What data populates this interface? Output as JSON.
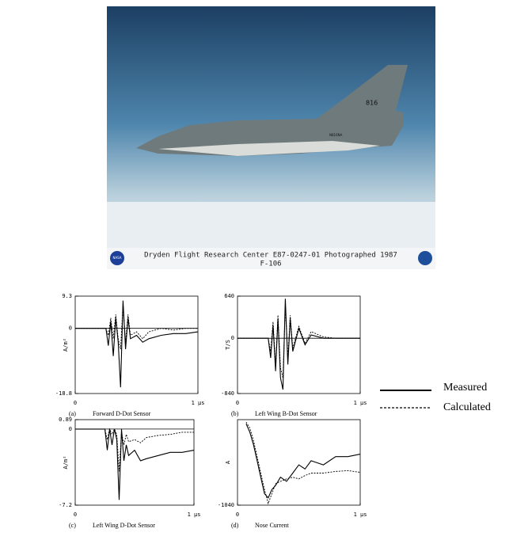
{
  "photo": {
    "caption": "Dryden Flight Research Center  E87-0247-01  Photographed 1987",
    "label": "F-106",
    "tail_number": "816",
    "registration": "N816NA",
    "logo": "NASA"
  },
  "chart_data": [
    {
      "type": "line",
      "label": "(a)",
      "title": "Forward D-Dot Sensor",
      "ylabel": "A/m²",
      "x": [
        0,
        0.2,
        0.25,
        0.27,
        0.29,
        0.31,
        0.33,
        0.35,
        0.37,
        0.39,
        0.41,
        0.43,
        0.45,
        0.5,
        0.55,
        0.6,
        0.7,
        0.8,
        0.9,
        1
      ],
      "series": [
        {
          "name": "Measured",
          "color": "#000000",
          "style": "solid",
          "values": [
            0,
            0,
            0,
            -5,
            2,
            -8,
            3,
            -4,
            -17,
            8,
            -6,
            3,
            -3,
            -2,
            -4,
            -3,
            -2,
            -1.5,
            -1.5,
            -1
          ]
        },
        {
          "name": "Calculated",
          "color": "#000000",
          "style": "dashed",
          "values": [
            0,
            0,
            0,
            -2,
            3,
            -3,
            4,
            -3,
            -6,
            7,
            -4,
            4,
            -2,
            -1,
            -3,
            -1,
            0,
            -0.5,
            0,
            0
          ]
        }
      ],
      "xlim": [
        0,
        1
      ],
      "xticks": [
        0,
        {
          "value": 1,
          "label": "1 μs"
        }
      ],
      "ylim": [
        -18.8,
        9.3
      ],
      "yticks": [
        -18.8,
        0,
        9.3
      ],
      "grid": false
    },
    {
      "type": "line",
      "label": "(b)",
      "title": "Left Wing B-Dot Sensor",
      "ylabel": "T/S",
      "x": [
        0,
        0.2,
        0.25,
        0.27,
        0.29,
        0.31,
        0.33,
        0.35,
        0.37,
        0.39,
        0.41,
        0.43,
        0.45,
        0.5,
        0.55,
        0.6,
        0.7,
        0.8,
        0.9,
        1
      ],
      "series": [
        {
          "name": "Measured",
          "color": "#000000",
          "style": "solid",
          "values": [
            0,
            0,
            0,
            -300,
            200,
            -500,
            300,
            -600,
            -780,
            600,
            -400,
            300,
            -200,
            150,
            -100,
            50,
            0,
            0,
            0,
            0
          ]
        },
        {
          "name": "Calculated",
          "color": "#000000",
          "style": "dashed",
          "values": [
            0,
            0,
            0,
            -200,
            250,
            -400,
            350,
            -450,
            -600,
            500,
            -300,
            350,
            -150,
            180,
            -80,
            100,
            20,
            0,
            0,
            0
          ]
        }
      ],
      "xlim": [
        0,
        1
      ],
      "xticks": [
        0,
        {
          "value": 1,
          "label": "1 μs"
        }
      ],
      "ylim": [
        -840,
        640
      ],
      "yticks": [
        -840,
        0,
        640
      ],
      "grid": false
    },
    {
      "type": "line",
      "label": "(c)",
      "title": "Left Wing D-Dot Sensor",
      "ylabel": "A/m²",
      "x": [
        0,
        0.2,
        0.25,
        0.27,
        0.29,
        0.31,
        0.33,
        0.35,
        0.37,
        0.39,
        0.41,
        0.43,
        0.45,
        0.5,
        0.55,
        0.6,
        0.7,
        0.8,
        0.9,
        1
      ],
      "series": [
        {
          "name": "Measured",
          "color": "#000000",
          "style": "solid",
          "values": [
            0,
            0,
            0,
            -2,
            0,
            -1.5,
            0,
            -1,
            -6.7,
            0,
            -3,
            -1.5,
            -2.5,
            -2,
            -3,
            -2.8,
            -2.5,
            -2.2,
            -2.2,
            -2
          ]
        },
        {
          "name": "Calculated",
          "color": "#000000",
          "style": "dashed",
          "values": [
            0,
            0,
            0,
            -1,
            0,
            -0.5,
            0,
            -0.5,
            -4,
            -0.3,
            -1.5,
            -0.5,
            -1.2,
            -1,
            -1.3,
            -0.8,
            -0.6,
            -0.5,
            -0.3,
            -0.3
          ]
        }
      ],
      "xlim": [
        0,
        1
      ],
      "xticks": [
        0,
        {
          "value": 1,
          "label": "1 μs"
        }
      ],
      "ylim": [
        -7.2,
        0.89
      ],
      "yticks": [
        -7.2,
        0,
        0.89
      ],
      "grid": false
    },
    {
      "type": "line",
      "label": "(d)",
      "title": "Nose Current",
      "ylabel": "A",
      "x": [
        0.07,
        0.1,
        0.13,
        0.16,
        0.19,
        0.22,
        0.25,
        0.28,
        0.31,
        0.35,
        0.4,
        0.45,
        0.5,
        0.55,
        0.6,
        0.7,
        0.8,
        0.9,
        1
      ],
      "series": [
        {
          "name": "Measured",
          "color": "#000000",
          "style": "solid",
          "values": [
            -50,
            -150,
            -300,
            -500,
            -700,
            -900,
            -950,
            -850,
            -800,
            -700,
            -750,
            -650,
            -550,
            -600,
            -500,
            -550,
            -450,
            -450,
            -420
          ]
        },
        {
          "name": "Calculated",
          "color": "#000000",
          "style": "dashed",
          "values": [
            -30,
            -100,
            -250,
            -450,
            -650,
            -850,
            -1020,
            -900,
            -780,
            -750,
            -720,
            -700,
            -720,
            -680,
            -650,
            -650,
            -630,
            -620,
            -640
          ]
        }
      ],
      "xlim": [
        0,
        1
      ],
      "xticks": [
        0,
        {
          "value": 1,
          "label": "1 μs"
        }
      ],
      "ylim": [
        -1040,
        0
      ],
      "yticks": [
        -1040
      ],
      "grid": false
    }
  ]
}
